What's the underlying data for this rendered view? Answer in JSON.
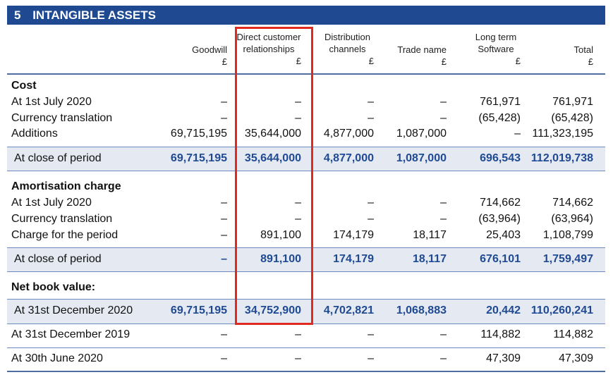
{
  "title": {
    "number": "5",
    "text": "INTANGIBLE ASSETS"
  },
  "columns": [
    {
      "line1": "",
      "line2": "Goodwill",
      "unit": "£"
    },
    {
      "line1": "Direct customer",
      "line2": "relationships",
      "unit": "£"
    },
    {
      "line1": "Distribution",
      "line2": "channels",
      "unit": "£"
    },
    {
      "line1": "",
      "line2": "Trade name",
      "unit": "£"
    },
    {
      "line1": "Long term",
      "line2": "Software",
      "unit": "£"
    },
    {
      "line1": "",
      "line2": "Total",
      "unit": "£"
    }
  ],
  "sections": {
    "cost": "Cost",
    "amortisation": "Amortisation charge",
    "nbv": "Net book value:"
  },
  "rows": [
    {
      "label": "At 1st July 2020",
      "values": [
        "–",
        "–",
        "–",
        "–",
        "761,971",
        "761,971"
      ]
    },
    {
      "label": "Currency translation",
      "values": [
        "–",
        "–",
        "–",
        "–",
        "(65,428)",
        "(65,428)"
      ]
    },
    {
      "label": "Additions",
      "values": [
        "69,715,195",
        "35,644,000",
        "4,877,000",
        "1,087,000",
        "–",
        "111,323,195"
      ]
    },
    {
      "label": "At close of period",
      "values": [
        "69,715,195",
        "35,644,000",
        "4,877,000",
        "1,087,000",
        "696,543",
        "112,019,738"
      ]
    },
    {
      "label": "At 1st July 2020",
      "values": [
        "–",
        "–",
        "–",
        "–",
        "714,662",
        "714,662"
      ]
    },
    {
      "label": "Currency translation",
      "values": [
        "–",
        "–",
        "–",
        "–",
        "(63,964)",
        "(63,964)"
      ]
    },
    {
      "label": "Charge for the period",
      "values": [
        "–",
        "891,100",
        "174,179",
        "18,117",
        "25,403",
        "1,108,799"
      ]
    },
    {
      "label": "At close of period",
      "values": [
        "–",
        "891,100",
        "174,179",
        "18,117",
        "676,101",
        "1,759,497"
      ]
    },
    {
      "label": "At 31st December 2020",
      "values": [
        "69,715,195",
        "34,752,900",
        "4,702,821",
        "1,068,883",
        "20,442",
        "110,260,241"
      ]
    },
    {
      "label": "At 31st December 2019",
      "values": [
        "–",
        "–",
        "–",
        "–",
        "114,882",
        "114,882"
      ]
    },
    {
      "label": "At 30th June 2020",
      "values": [
        "–",
        "–",
        "–",
        "–",
        "47,309",
        "47,309"
      ]
    }
  ],
  "colors": {
    "header_bar": "#1f4a92",
    "shade": "#e4e9f2",
    "highlight": "#e0291f"
  }
}
